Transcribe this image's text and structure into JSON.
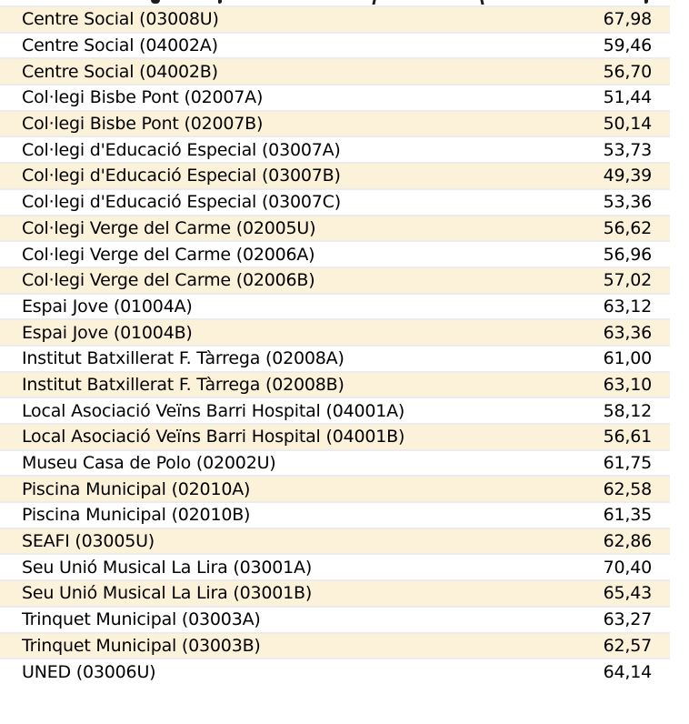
{
  "chart_data": {
    "type": "table",
    "title": "",
    "columns": [],
    "decimal_format": "comma",
    "rows": [
      {
        "name": "Centre Social (03008U)",
        "value": "67,98"
      },
      {
        "name": "Centre Social (04002A)",
        "value": "59,46"
      },
      {
        "name": "Centre Social (04002B)",
        "value": "56,70"
      },
      {
        "name": "Col·legi Bisbe Pont (02007A)",
        "value": "51,44"
      },
      {
        "name": "Col·legi Bisbe Pont (02007B)",
        "value": "50,14"
      },
      {
        "name": "Col·legi d'Educació Especial (03007A)",
        "value": "53,73"
      },
      {
        "name": "Col·legi d'Educació Especial (03007B)",
        "value": "49,39"
      },
      {
        "name": "Col·legi d'Educació Especial (03007C)",
        "value": "53,36"
      },
      {
        "name": "Col·legi Verge del Carme (02005U)",
        "value": "56,62"
      },
      {
        "name": "Col·legi Verge del Carme (02006A)",
        "value": "56,96"
      },
      {
        "name": "Col·legi Verge del Carme (02006B)",
        "value": "57,02"
      },
      {
        "name": "Espai Jove (01004A)",
        "value": "63,12"
      },
      {
        "name": "Espai Jove (01004B)",
        "value": "63,36"
      },
      {
        "name": "Institut Batxillerat F. Tàrrega (02008A)",
        "value": "61,00"
      },
      {
        "name": "Institut Batxillerat F. Tàrrega (02008B)",
        "value": "63,10"
      },
      {
        "name": "Local Asociació Veïns Barri Hospital (04001A)",
        "value": "58,12"
      },
      {
        "name": "Local Asociació Veïns Barri Hospital (04001B)",
        "value": "56,61"
      },
      {
        "name": "Museu Casa de Polo (02002U)",
        "value": "61,75"
      },
      {
        "name": "Piscina Municipal (02010A)",
        "value": "62,58"
      },
      {
        "name": "Piscina Municipal (02010B)",
        "value": "61,35"
      },
      {
        "name": "SEAFI (03005U)",
        "value": "62,86"
      },
      {
        "name": "Seu Unió Musical La Lira (03001A)",
        "value": "70,40"
      },
      {
        "name": "Seu Unió Musical La Lira (03001B)",
        "value": "65,43"
      },
      {
        "name": "Trinquet Municipal (03003A)",
        "value": "63,27"
      },
      {
        "name": "Trinquet Municipal (03003B)",
        "value": "62,57"
      },
      {
        "name": "UNED (03006U)",
        "value": "64,14"
      }
    ]
  },
  "style": {
    "shaded_row_color": "#fcf2da",
    "plain_row_color": "#ffffff",
    "separator_color": "#ececec",
    "text_color": "#000000"
  },
  "top_clipped_row_visible": true
}
